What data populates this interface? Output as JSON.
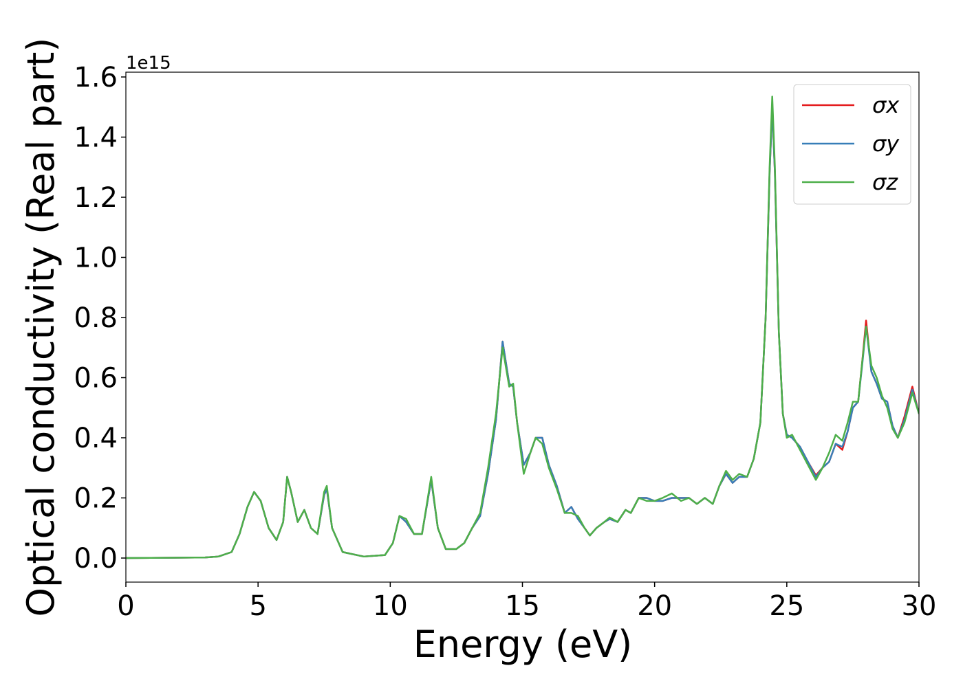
{
  "chart_data": {
    "type": "line",
    "x_label": "Energy (eV)",
    "y_label": "Optical conductivity (Real part)",
    "y_offset_text": "1e15",
    "xlim": [
      0,
      30
    ],
    "ylim": [
      -0.08,
      1.616
    ],
    "xticks": [
      0,
      5,
      10,
      15,
      20,
      25,
      30
    ],
    "yticks": [
      {
        "value": 0,
        "label": "0.0"
      },
      0.2,
      0.4,
      0.6,
      0.8,
      {
        "value": 1,
        "label": "1.0"
      },
      1.2,
      1.4,
      1.6
    ],
    "legend": "upper right",
    "x": [
      0,
      3,
      3.5,
      4,
      4.3,
      4.6,
      4.85,
      5.1,
      5.4,
      5.7,
      5.95,
      6.1,
      6.25,
      6.5,
      6.75,
      7,
      7.25,
      7.5,
      7.6,
      7.8,
      8.2,
      9,
      9.8,
      10.1,
      10.35,
      10.6,
      10.9,
      11.2,
      11.55,
      11.8,
      12.1,
      12.5,
      12.8,
      13.1,
      13.4,
      13.7,
      14,
      14.25,
      14.5,
      14.65,
      14.8,
      15.05,
      15.3,
      15.5,
      15.75,
      16,
      16.3,
      16.6,
      16.85,
      17.1,
      17.35,
      17.55,
      17.8,
      18.1,
      18.3,
      18.6,
      18.9,
      19.1,
      19.4,
      19.7,
      20,
      20.3,
      20.65,
      21,
      21.3,
      21.6,
      21.9,
      22.2,
      22.45,
      22.7,
      22.95,
      23.2,
      23.5,
      23.75,
      24,
      24.2,
      24.35,
      24.45,
      24.55,
      24.7,
      24.85,
      25,
      25.2,
      25.5,
      25.8,
      26.1,
      26.35,
      26.6,
      26.85,
      27.1,
      27.3,
      27.5,
      27.7,
      27.85,
      28,
      28.2,
      28.4,
      28.6,
      28.8,
      29,
      29.2,
      29.45,
      29.75,
      30
    ],
    "series": [
      {
        "name": "σx",
        "color": "#e41a1c",
        "values": [
          0,
          0.002,
          0.005,
          0.02,
          0.08,
          0.17,
          0.22,
          0.19,
          0.1,
          0.06,
          0.12,
          0.27,
          0.22,
          0.12,
          0.16,
          0.1,
          0.08,
          0.21,
          0.23,
          0.1,
          0.02,
          0.005,
          0.01,
          0.05,
          0.14,
          0.12,
          0.08,
          0.08,
          0.26,
          0.1,
          0.03,
          0.03,
          0.05,
          0.1,
          0.14,
          0.28,
          0.46,
          0.72,
          0.58,
          0.57,
          0.45,
          0.31,
          0.35,
          0.4,
          0.4,
          0.31,
          0.24,
          0.15,
          0.17,
          0.13,
          0.1,
          0.075,
          0.1,
          0.12,
          0.13,
          0.12,
          0.16,
          0.15,
          0.2,
          0.2,
          0.19,
          0.19,
          0.2,
          0.2,
          0.2,
          0.18,
          0.2,
          0.18,
          0.24,
          0.28,
          0.25,
          0.27,
          0.27,
          0.33,
          0.45,
          0.8,
          1.28,
          1.5,
          1.28,
          0.75,
          0.48,
          0.41,
          0.4,
          0.37,
          0.32,
          0.275,
          0.3,
          0.32,
          0.38,
          0.36,
          0.42,
          0.5,
          0.52,
          0.65,
          0.79,
          0.62,
          0.58,
          0.53,
          0.52,
          0.44,
          0.4,
          0.47,
          0.57,
          0.48
        ]
      },
      {
        "name": "σy",
        "color": "#377eb8",
        "values": [
          0,
          0.002,
          0.005,
          0.02,
          0.08,
          0.17,
          0.22,
          0.19,
          0.1,
          0.06,
          0.12,
          0.27,
          0.22,
          0.12,
          0.16,
          0.1,
          0.08,
          0.21,
          0.23,
          0.1,
          0.02,
          0.005,
          0.01,
          0.05,
          0.14,
          0.12,
          0.08,
          0.08,
          0.26,
          0.1,
          0.03,
          0.03,
          0.05,
          0.1,
          0.14,
          0.28,
          0.46,
          0.72,
          0.58,
          0.57,
          0.45,
          0.31,
          0.35,
          0.4,
          0.4,
          0.31,
          0.24,
          0.15,
          0.17,
          0.13,
          0.1,
          0.075,
          0.1,
          0.12,
          0.13,
          0.12,
          0.16,
          0.15,
          0.2,
          0.2,
          0.19,
          0.19,
          0.2,
          0.2,
          0.2,
          0.18,
          0.2,
          0.18,
          0.24,
          0.28,
          0.25,
          0.27,
          0.27,
          0.33,
          0.45,
          0.8,
          1.28,
          1.5,
          1.28,
          0.75,
          0.48,
          0.41,
          0.4,
          0.37,
          0.32,
          0.27,
          0.3,
          0.32,
          0.38,
          0.37,
          0.42,
          0.5,
          0.52,
          0.64,
          0.77,
          0.62,
          0.58,
          0.53,
          0.52,
          0.44,
          0.4,
          0.46,
          0.56,
          0.48
        ]
      },
      {
        "name": "σz",
        "color": "#4daf4a",
        "values": [
          0,
          0.002,
          0.005,
          0.02,
          0.08,
          0.17,
          0.22,
          0.19,
          0.1,
          0.06,
          0.12,
          0.27,
          0.22,
          0.12,
          0.16,
          0.1,
          0.08,
          0.22,
          0.24,
          0.1,
          0.02,
          0.005,
          0.01,
          0.05,
          0.14,
          0.13,
          0.08,
          0.08,
          0.27,
          0.1,
          0.03,
          0.03,
          0.05,
          0.1,
          0.15,
          0.3,
          0.48,
          0.7,
          0.57,
          0.58,
          0.45,
          0.28,
          0.35,
          0.4,
          0.38,
          0.3,
          0.23,
          0.15,
          0.15,
          0.14,
          0.1,
          0.075,
          0.1,
          0.12,
          0.135,
          0.12,
          0.16,
          0.15,
          0.2,
          0.19,
          0.19,
          0.2,
          0.215,
          0.19,
          0.2,
          0.18,
          0.2,
          0.18,
          0.24,
          0.29,
          0.26,
          0.28,
          0.27,
          0.33,
          0.45,
          0.8,
          1.3,
          1.535,
          1.3,
          0.75,
          0.48,
          0.4,
          0.41,
          0.36,
          0.31,
          0.26,
          0.3,
          0.35,
          0.41,
          0.39,
          0.45,
          0.52,
          0.52,
          0.65,
          0.77,
          0.64,
          0.6,
          0.54,
          0.5,
          0.43,
          0.4,
          0.45,
          0.55,
          0.48
        ]
      }
    ]
  }
}
